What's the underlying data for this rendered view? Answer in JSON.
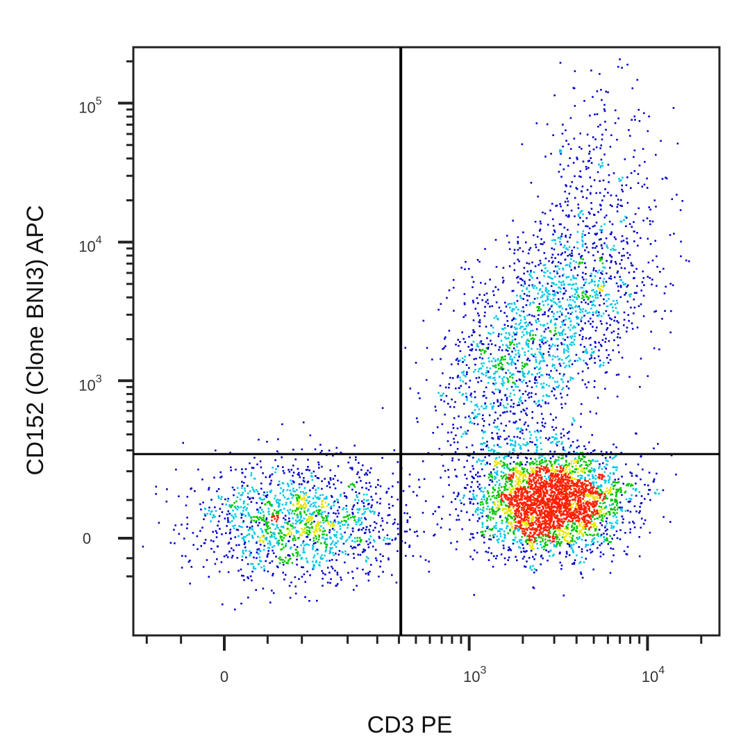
{
  "chart_data": {
    "type": "scatter",
    "subtype": "flow-cytometry density dot plot",
    "xlabel": "CD3 PE",
    "ylabel": "CD152 (Clone BNI3) APC",
    "x_scale": "biexponential",
    "y_scale": "biexponential",
    "xlim": [
      -124,
      25000
    ],
    "ylim": [
      -357,
      250000
    ],
    "x_ticks": [
      {
        "value": 0,
        "base": "0",
        "exp": ""
      },
      {
        "value": 1000,
        "base": "10",
        "exp": "3"
      },
      {
        "value": 10000,
        "base": "10",
        "exp": "4"
      }
    ],
    "y_ticks": [
      {
        "value": 0,
        "base": "0",
        "exp": ""
      },
      {
        "value": 1000,
        "base": "10",
        "exp": "3"
      },
      {
        "value": 10000,
        "base": "10",
        "exp": "4"
      },
      {
        "value": 100000,
        "base": "10",
        "exp": "5"
      }
    ],
    "quadrant_gate": {
      "x": 410,
      "y": 280
    },
    "populations": [
      {
        "center": [
          2800,
          100
        ],
        "events": 3200
      },
      {
        "center": [
          95,
          45
        ],
        "events": 1500
      },
      {
        "center": [
          2000,
          1500
        ],
        "events": 1800
      },
      {
        "center": [
          5500,
          30000
        ],
        "events": 250
      }
    ],
    "color_scale": [
      "#0000c8",
      "#00c8e6",
      "#00c800",
      "#e6e600",
      "#ff2000"
    ],
    "grid": false,
    "legend": "none"
  }
}
